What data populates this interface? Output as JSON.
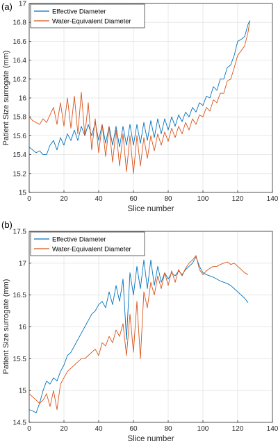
{
  "colors": {
    "effective": "#0072BD",
    "water": "#D95319",
    "grid": "#e2e2e2",
    "axis": "#262626"
  },
  "chart_data": [
    {
      "panel_label": "(a)",
      "type": "line",
      "xlabel": "Slice number",
      "ylabel": "Patient Size surrogate (mm)",
      "xlim": [
        0,
        140
      ],
      "ylim": [
        15,
        17
      ],
      "xticks": [
        0,
        20,
        40,
        60,
        80,
        100,
        120,
        140
      ],
      "yticks": [
        15,
        15.2,
        15.4,
        15.6,
        15.8,
        16,
        16.2,
        16.4,
        16.6,
        16.8,
        17
      ],
      "xtick_labels": [
        "0",
        "20",
        "40",
        "60",
        "80",
        "100",
        "120",
        "140"
      ],
      "ytick_labels": [
        "15",
        "15.2",
        "15.4",
        "15.6",
        "15.8",
        "16",
        "16.2",
        "16.4",
        "16.6",
        "16.8",
        "17"
      ],
      "grid": true,
      "legend_position": "top-left",
      "series": [
        {
          "name": "Effective Diameter",
          "color": "#0072BD",
          "x": [
            0,
            2,
            4,
            6,
            8,
            10,
            12,
            14,
            16,
            18,
            20,
            22,
            24,
            26,
            28,
            30,
            32,
            34,
            36,
            38,
            40,
            42,
            44,
            46,
            48,
            50,
            52,
            54,
            56,
            58,
            60,
            62,
            64,
            66,
            68,
            70,
            72,
            74,
            76,
            78,
            80,
            82,
            84,
            86,
            88,
            90,
            92,
            94,
            96,
            98,
            100,
            102,
            104,
            106,
            108,
            110,
            112,
            114,
            116,
            118,
            120,
            122,
            124,
            126,
            127
          ],
          "y": [
            15.48,
            15.45,
            15.42,
            15.44,
            15.4,
            15.4,
            15.5,
            15.55,
            15.45,
            15.58,
            15.5,
            15.62,
            15.55,
            15.66,
            15.55,
            15.7,
            15.6,
            15.72,
            15.6,
            15.74,
            15.55,
            15.72,
            15.52,
            15.7,
            15.5,
            15.7,
            15.48,
            15.7,
            15.5,
            15.72,
            15.5,
            15.72,
            15.52,
            15.74,
            15.55,
            15.76,
            15.58,
            15.78,
            15.62,
            15.78,
            15.66,
            15.8,
            15.7,
            15.82,
            15.75,
            15.85,
            15.8,
            15.9,
            15.85,
            15.95,
            15.92,
            16.02,
            16.0,
            16.12,
            16.08,
            16.2,
            16.2,
            16.32,
            16.35,
            16.45,
            16.6,
            16.62,
            16.65,
            16.78,
            16.82
          ]
        },
        {
          "name": "Water-Equivalent Diameter",
          "color": "#D95319",
          "x": [
            0,
            2,
            4,
            6,
            8,
            10,
            12,
            14,
            16,
            18,
            20,
            22,
            24,
            26,
            28,
            30,
            32,
            34,
            36,
            38,
            40,
            42,
            44,
            46,
            48,
            50,
            52,
            54,
            56,
            58,
            60,
            62,
            64,
            66,
            68,
            70,
            72,
            74,
            76,
            78,
            80,
            82,
            84,
            86,
            88,
            90,
            92,
            94,
            96,
            98,
            100,
            102,
            104,
            106,
            108,
            110,
            112,
            114,
            116,
            118,
            120,
            122,
            124,
            126,
            127
          ],
          "y": [
            15.8,
            15.76,
            15.74,
            15.72,
            15.78,
            15.74,
            15.82,
            15.9,
            15.72,
            15.95,
            15.7,
            16.0,
            15.68,
            16.02,
            15.62,
            16.06,
            15.6,
            15.95,
            15.45,
            15.78,
            15.42,
            15.72,
            15.38,
            15.7,
            15.32,
            15.66,
            15.28,
            15.62,
            15.22,
            15.6,
            15.2,
            15.6,
            15.28,
            15.58,
            15.36,
            15.6,
            15.44,
            15.62,
            15.5,
            15.64,
            15.54,
            15.68,
            15.58,
            15.7,
            15.62,
            15.74,
            15.66,
            15.78,
            15.72,
            15.82,
            15.8,
            15.9,
            15.86,
            15.98,
            15.95,
            16.05,
            16.05,
            16.18,
            16.2,
            16.32,
            16.45,
            16.5,
            16.55,
            16.7,
            16.82
          ]
        }
      ]
    },
    {
      "panel_label": "(b)",
      "type": "line",
      "xlabel": "Slice number",
      "ylabel": "Patient Size surrogate (mm)",
      "xlim": [
        0,
        140
      ],
      "ylim": [
        14.5,
        17.5
      ],
      "xticks": [
        0,
        20,
        40,
        60,
        80,
        100,
        120,
        140
      ],
      "yticks": [
        14.5,
        15,
        15.5,
        16,
        16.5,
        17,
        17.5
      ],
      "xtick_labels": [
        "0",
        "20",
        "40",
        "60",
        "80",
        "100",
        "120",
        "140"
      ],
      "ytick_labels": [
        "14.5",
        "15",
        "15.5",
        "16",
        "16.5",
        "17",
        "17.5"
      ],
      "grid": true,
      "legend_position": "top-left",
      "series": [
        {
          "name": "Effective Diameter",
          "color": "#0072BD",
          "x": [
            0,
            2,
            4,
            6,
            8,
            10,
            12,
            14,
            16,
            18,
            20,
            22,
            24,
            26,
            28,
            30,
            32,
            34,
            36,
            38,
            40,
            42,
            44,
            46,
            48,
            50,
            52,
            54,
            56,
            58,
            60,
            62,
            64,
            66,
            68,
            70,
            72,
            74,
            76,
            78,
            80,
            82,
            84,
            86,
            88,
            90,
            92,
            94,
            96,
            98,
            100,
            102,
            104,
            106,
            108,
            110,
            112,
            114,
            116,
            118,
            120,
            122,
            124,
            126
          ],
          "y": [
            14.7,
            14.68,
            14.65,
            14.8,
            15.0,
            15.15,
            15.1,
            15.2,
            15.15,
            15.3,
            15.4,
            15.55,
            15.6,
            15.7,
            15.8,
            15.9,
            16.0,
            16.1,
            16.2,
            16.25,
            16.35,
            16.4,
            16.3,
            16.55,
            16.35,
            16.65,
            16.4,
            16.75,
            15.8,
            16.85,
            16.5,
            16.95,
            16.6,
            17.05,
            16.6,
            17.05,
            16.65,
            16.95,
            16.7,
            16.85,
            16.75,
            16.85,
            16.8,
            16.88,
            16.82,
            16.9,
            16.95,
            17.0,
            17.1,
            16.95,
            16.85,
            16.82,
            16.8,
            16.78,
            16.75,
            16.72,
            16.7,
            16.68,
            16.65,
            16.6,
            16.55,
            16.5,
            16.45,
            16.38
          ]
        },
        {
          "name": "Water-Equivalent Diameter",
          "color": "#D95319",
          "x": [
            0,
            2,
            4,
            6,
            8,
            10,
            12,
            14,
            16,
            18,
            20,
            22,
            24,
            26,
            28,
            30,
            32,
            34,
            36,
            38,
            40,
            42,
            44,
            46,
            48,
            50,
            52,
            54,
            56,
            58,
            60,
            62,
            64,
            66,
            68,
            70,
            72,
            74,
            76,
            78,
            80,
            82,
            84,
            86,
            88,
            90,
            92,
            94,
            96,
            98,
            100,
            102,
            104,
            106,
            108,
            110,
            112,
            114,
            116,
            118,
            120,
            122,
            124,
            126
          ],
          "y": [
            14.95,
            14.9,
            14.85,
            14.8,
            14.85,
            14.95,
            14.75,
            15.0,
            14.7,
            15.1,
            15.2,
            15.3,
            15.35,
            15.4,
            15.45,
            15.5,
            15.5,
            15.55,
            15.6,
            15.65,
            15.55,
            15.75,
            15.7,
            15.85,
            15.75,
            15.95,
            15.85,
            16.05,
            15.55,
            16.2,
            15.6,
            16.4,
            15.5,
            16.55,
            16.3,
            16.7,
            16.5,
            16.8,
            16.6,
            16.85,
            16.65,
            16.88,
            16.7,
            16.9,
            16.8,
            16.92,
            17.0,
            17.05,
            17.12,
            16.9,
            16.82,
            16.88,
            16.92,
            16.95,
            16.95,
            16.98,
            17.0,
            17.02,
            16.98,
            17.0,
            16.95,
            16.9,
            16.85,
            16.82
          ]
        }
      ]
    }
  ]
}
